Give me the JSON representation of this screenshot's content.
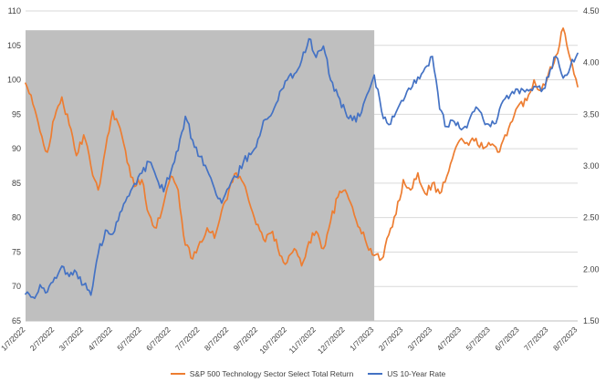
{
  "chart_data": {
    "type": "line",
    "title": "",
    "x_tick_labels": [
      "1/7/2022",
      "2/7/2022",
      "3/7/2022",
      "4/7/2022",
      "5/7/2022",
      "6/7/2022",
      "7/7/2022",
      "8/7/2022",
      "9/7/2022",
      "10/7/2022",
      "11/7/2022",
      "12/7/2022",
      "1/7/2023",
      "2/7/2023",
      "3/7/2023",
      "4/7/2023",
      "5/7/2023",
      "6/7/2023",
      "7/7/2023",
      "8/7/2023"
    ],
    "x_range_months": [
      0,
      19
    ],
    "left_axis": {
      "ticks": [
        "65",
        "70",
        "75",
        "80",
        "85",
        "90",
        "95",
        "100",
        "105",
        "110"
      ],
      "range": [
        65,
        110
      ]
    },
    "right_axis": {
      "ticks": [
        "1.50",
        "2.00",
        "2.50",
        "3.00",
        "3.50",
        "4.00",
        "4.50"
      ],
      "range": [
        1.5,
        4.5
      ]
    },
    "gridline_color": "#d9d9d9",
    "axis_text_color": "#404040",
    "shaded_region": {
      "x_start_month": 0,
      "x_end_month": 12,
      "top_value_left_axis": 107.2,
      "color": "#bfbfbf"
    },
    "legend_position": "bottom",
    "series": [
      {
        "name": "S&P 500 Technology Sector Select Total Return",
        "axis": "left",
        "color": "#ED7D31",
        "x_step_months": 0.25,
        "values": [
          99.5,
          96.5,
          92.5,
          89.5,
          94.5,
          97.5,
          93.5,
          89.0,
          92.0,
          87.5,
          84.0,
          90.0,
          95.5,
          93.0,
          88.0,
          84.5,
          85.5,
          80.5,
          78.5,
          82.0,
          86.0,
          84.0,
          76.0,
          74.0,
          76.5,
          78.5,
          77.0,
          81.0,
          84.0,
          86.5,
          85.0,
          81.5,
          79.0,
          76.5,
          78.0,
          74.5,
          73.5,
          75.5,
          73.0,
          76.5,
          78.0,
          75.5,
          79.5,
          83.0,
          84.0,
          81.5,
          78.5,
          76.0,
          74.5,
          74.0,
          77.5,
          80.5,
          85.5,
          84.0,
          86.5,
          83.5,
          85.0,
          83.5,
          86.0,
          89.5,
          91.5,
          90.5,
          91.5,
          90.0,
          90.5,
          89.5,
          92.0,
          94.0,
          96.5,
          97.0,
          100.0,
          98.5,
          101.0,
          103.5,
          107.5,
          103.0,
          99.0
        ]
      },
      {
        "name": "US 10-Year Rate",
        "axis": "right",
        "color": "#4472C4",
        "x_step_months": 0.25,
        "values": [
          1.76,
          1.73,
          1.85,
          1.78,
          1.92,
          2.03,
          1.93,
          1.97,
          1.85,
          1.75,
          2.15,
          2.38,
          2.34,
          2.55,
          2.7,
          2.83,
          2.93,
          3.04,
          2.89,
          2.75,
          2.94,
          3.15,
          3.48,
          3.25,
          3.09,
          2.96,
          2.78,
          2.64,
          2.79,
          2.89,
          3.04,
          3.11,
          3.26,
          3.45,
          3.52,
          3.72,
          3.83,
          3.89,
          4.02,
          4.23,
          4.05,
          4.16,
          3.83,
          3.68,
          3.53,
          3.44,
          3.48,
          3.69,
          3.88,
          3.53,
          3.4,
          3.52,
          3.63,
          3.74,
          3.86,
          3.95,
          4.06,
          3.55,
          3.38,
          3.43,
          3.35,
          3.43,
          3.57,
          3.45,
          3.38,
          3.47,
          3.65,
          3.72,
          3.7,
          3.74,
          3.77,
          3.72,
          3.86,
          4.06,
          3.85,
          3.96,
          4.09
        ]
      }
    ]
  }
}
